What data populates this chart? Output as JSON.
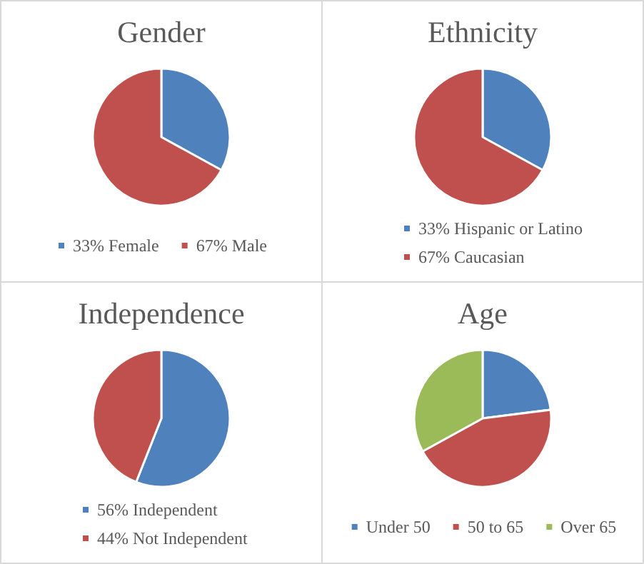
{
  "chart_data": [
    {
      "type": "pie",
      "title": "Gender",
      "categories": [
        "33% Female",
        "67% Male"
      ],
      "values": [
        33,
        67
      ],
      "colors": [
        "#4f81bd",
        "#c0504d"
      ],
      "legend": "bottom"
    },
    {
      "type": "pie",
      "title": "Ethnicity",
      "categories": [
        "33% Hispanic or Latino",
        "67% Caucasian"
      ],
      "values": [
        33,
        67
      ],
      "colors": [
        "#4f81bd",
        "#c0504d"
      ],
      "legend": "bottom"
    },
    {
      "type": "pie",
      "title": "Independence",
      "categories": [
        "56% Independent",
        "44% Not Independent"
      ],
      "values": [
        56,
        44
      ],
      "colors": [
        "#4f81bd",
        "#c0504d"
      ],
      "legend": "bottom"
    },
    {
      "type": "pie",
      "title": "Age",
      "categories": [
        "Under 50",
        "50 to 65",
        "Over 65"
      ],
      "values": [
        23,
        44,
        33
      ],
      "colors": [
        "#4f81bd",
        "#c0504d",
        "#9bbb59"
      ],
      "legend": "bottom"
    }
  ]
}
